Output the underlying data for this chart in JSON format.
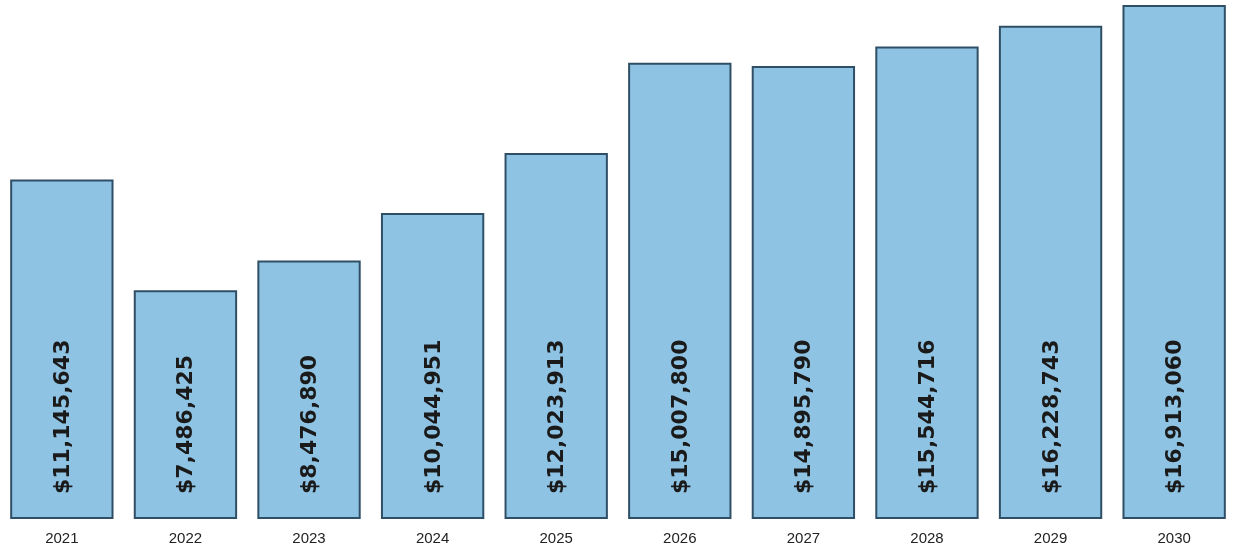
{
  "chart_data": {
    "type": "bar",
    "categories": [
      "2021",
      "2022",
      "2023",
      "2024",
      "2025",
      "2026",
      "2027",
      "2028",
      "2029",
      "2030"
    ],
    "values": [
      11145643,
      7486425,
      8476890,
      10044951,
      12023913,
      15007800,
      14895790,
      15544716,
      16228743,
      16913060
    ],
    "value_labels": [
      "$11,145,643",
      "$7,486,425",
      "$8,476,890",
      "$10,044,951",
      "$12,023,913",
      "$15,007,800",
      "$14,895,790",
      "$15,544,716",
      "$16,228,743",
      "$16,913,060"
    ],
    "color": "#8fc3e3"
  }
}
